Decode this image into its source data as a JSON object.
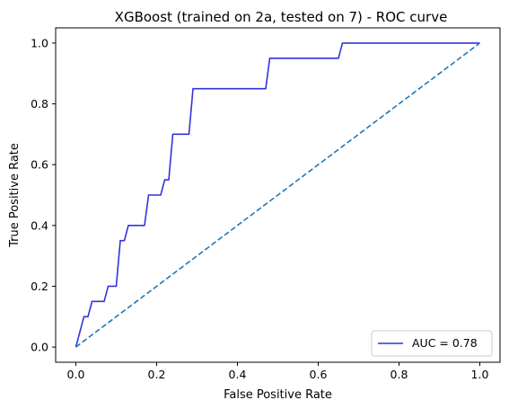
{
  "chart_data": {
    "type": "line",
    "title": "XGBoost (trained on 2a, tested on 7) -  ROC curve",
    "xlabel": "False Positive Rate",
    "ylabel": "True Positive Rate",
    "xlim": [
      -0.05,
      1.05
    ],
    "ylim": [
      -0.05,
      1.05
    ],
    "xticks": [
      0.0,
      0.2,
      0.4,
      0.6,
      0.8,
      1.0
    ],
    "yticks": [
      0.0,
      0.2,
      0.4,
      0.6,
      0.8,
      1.0
    ],
    "xtick_labels": [
      "0.0",
      "0.2",
      "0.4",
      "0.6",
      "0.8",
      "1.0"
    ],
    "ytick_labels": [
      "0.0",
      "0.2",
      "0.4",
      "0.6",
      "0.8",
      "1.0"
    ],
    "grid": false,
    "legend_position": "lower-right",
    "series": [
      {
        "name": "AUC = 0.78",
        "color": "#3333dd",
        "style": "solid",
        "x": [
          0.0,
          0.02,
          0.03,
          0.04,
          0.07,
          0.08,
          0.1,
          0.11,
          0.12,
          0.13,
          0.17,
          0.18,
          0.21,
          0.22,
          0.23,
          0.24,
          0.28,
          0.29,
          0.47,
          0.48,
          0.65,
          0.66,
          1.0
        ],
        "y": [
          0.0,
          0.1,
          0.1,
          0.15,
          0.15,
          0.2,
          0.2,
          0.35,
          0.35,
          0.4,
          0.4,
          0.5,
          0.5,
          0.55,
          0.55,
          0.7,
          0.7,
          0.85,
          0.85,
          0.95,
          0.95,
          1.0,
          1.0
        ]
      },
      {
        "name": "",
        "color": "#1f77b4",
        "style": "dashed",
        "x": [
          0.0,
          1.0
        ],
        "y": [
          0.0,
          1.0
        ]
      }
    ]
  }
}
